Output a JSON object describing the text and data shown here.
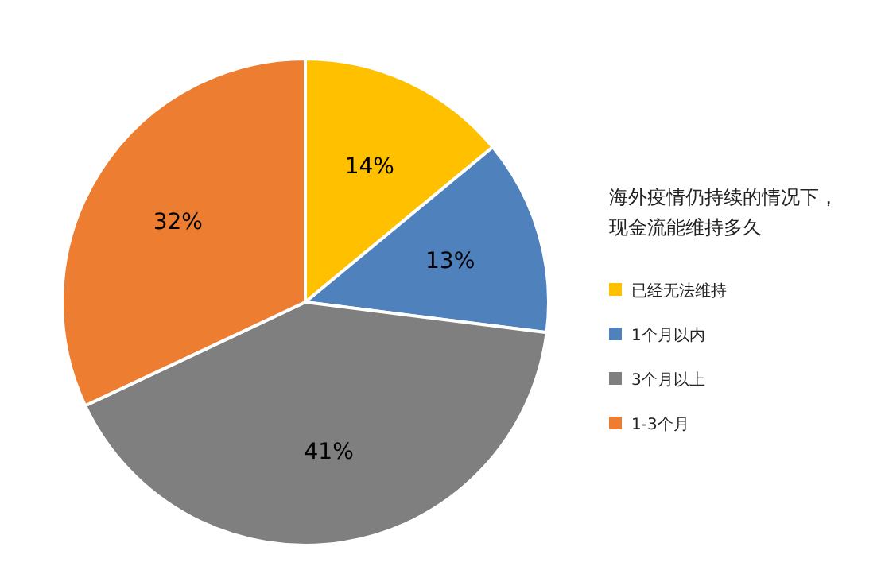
{
  "chart_data": {
    "type": "pie",
    "legend_title": "海外疫情仍持续的情况下，现金流能维持多久",
    "categories": [
      "已经无法维持",
      "1个月以内",
      "3个月以上",
      "1-3个月"
    ],
    "values": [
      14,
      13,
      41,
      32
    ],
    "colors": [
      "#ffc000",
      "#4f81bd",
      "#7f7f7f",
      "#ed7d31"
    ],
    "value_labels": [
      "14%",
      "13%",
      "41%",
      "32%"
    ],
    "legend": "right"
  }
}
